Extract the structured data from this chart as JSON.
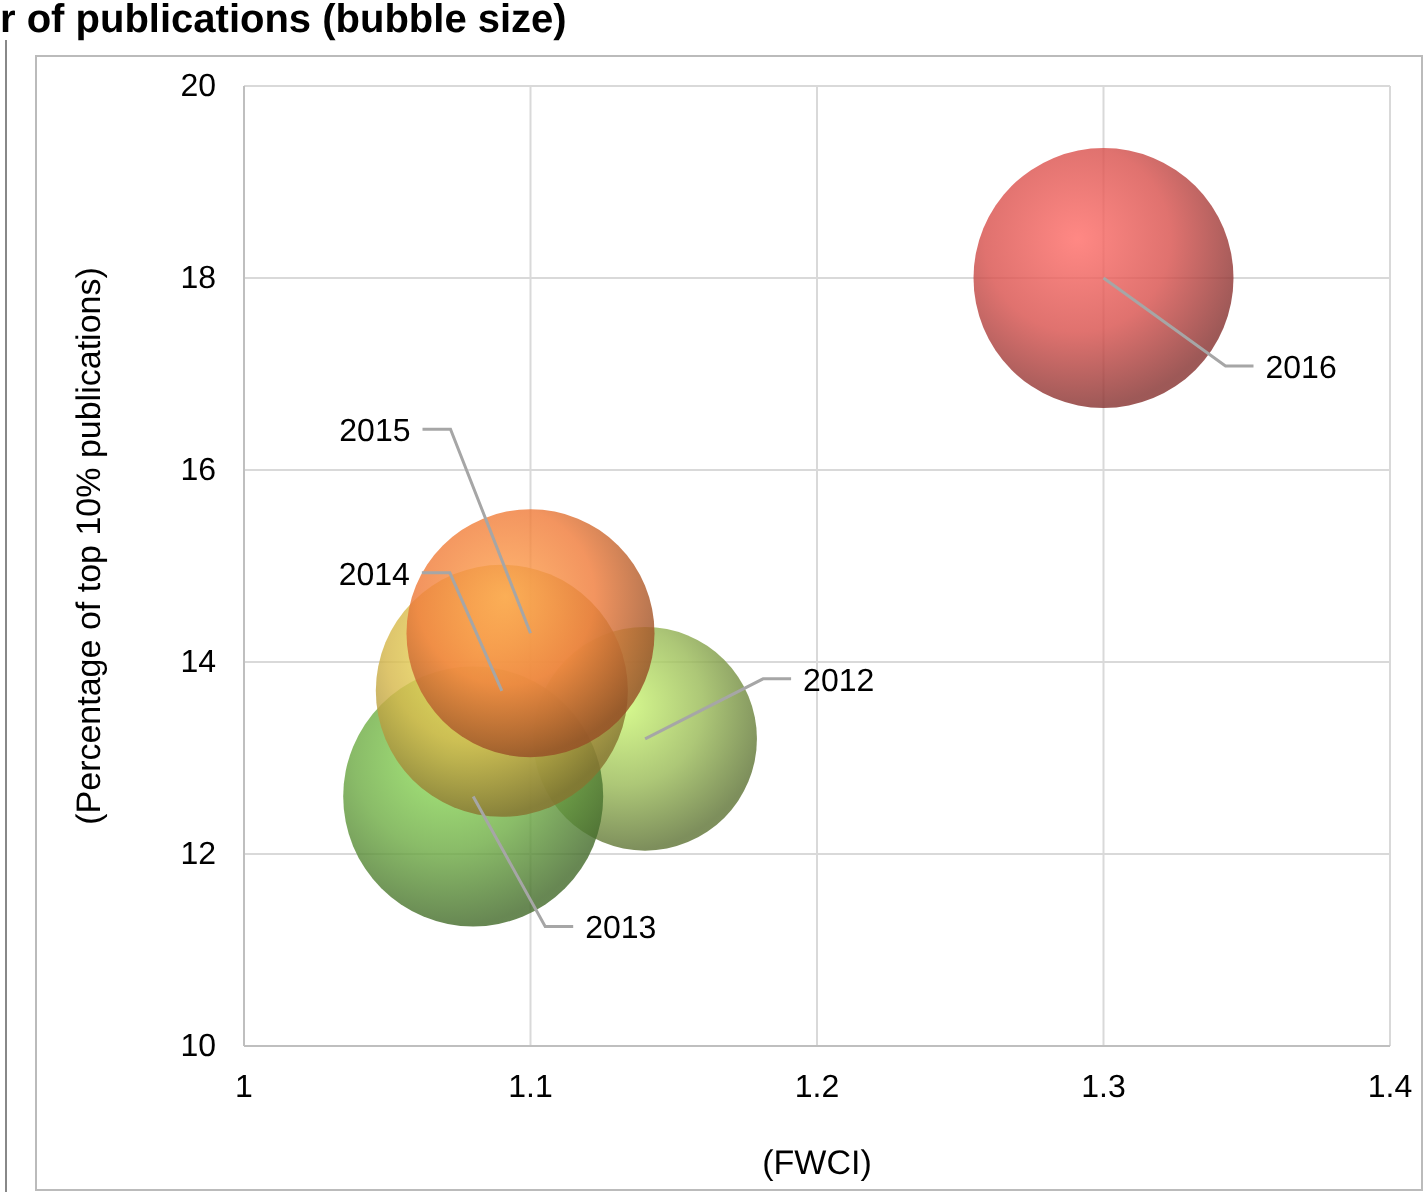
{
  "chart_data": {
    "type": "bubble",
    "title": "r of publications (bubble size)",
    "xlabel": "(FWCI)",
    "ylabel": "(Percentage of top 10% publications)",
    "x": [
      1.14,
      1.08,
      1.09,
      1.1,
      1.3
    ],
    "values": [
      13.2,
      12.6,
      13.7,
      14.3,
      18.0
    ],
    "sizes": [
      0.74,
      1,
      0.94,
      0.91,
      1
    ],
    "colors": [
      "#9bbb59",
      "#70ad47",
      "#d6b84c",
      "#f07d3c",
      "#d9534f"
    ],
    "xlim": [
      1,
      1.4
    ],
    "xticks": [
      1,
      1.1,
      1.2,
      1.3,
      1.4
    ],
    "ylim": [
      10,
      20
    ],
    "yticks": [
      10,
      12,
      14,
      16,
      18,
      20
    ],
    "grid": true,
    "annotations": [
      {
        "text": "2012",
        "x": 1.14,
        "y": 13.2
      },
      {
        "text": "2013",
        "x": 1.08,
        "y": 12.6
      },
      {
        "text": "2014",
        "x": 1.09,
        "y": 13.7
      },
      {
        "text": "2015",
        "x": 1.1,
        "y": 14.3
      },
      {
        "text": "2016",
        "x": 1.3,
        "y": 18.0
      }
    ]
  }
}
